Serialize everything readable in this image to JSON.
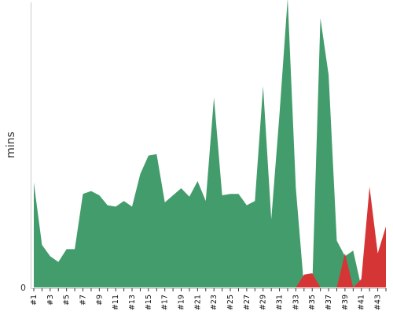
{
  "chart_data": {
    "type": "area",
    "ylabel": "mins",
    "y_tick_labels": [
      "0"
    ],
    "x_tick_labels": [
      "#1",
      "#3",
      "#5",
      "#7",
      "#9",
      "#11",
      "#13",
      "#15",
      "#17",
      "#19",
      "#21",
      "#23",
      "#25",
      "#27",
      "#29",
      "#31",
      "#33",
      "#35",
      "#37",
      "#39",
      "#41",
      "#43"
    ],
    "categories": [
      "#1",
      "#2",
      "#3",
      "#4",
      "#5",
      "#6",
      "#7",
      "#8",
      "#9",
      "#10",
      "#11",
      "#12",
      "#13",
      "#14",
      "#15",
      "#16",
      "#17",
      "#18",
      "#19",
      "#20",
      "#21",
      "#22",
      "#23",
      "#24",
      "#25",
      "#26",
      "#27",
      "#28",
      "#29",
      "#30",
      "#31",
      "#32",
      "#33",
      "#34",
      "#35",
      "#36",
      "#37",
      "#38",
      "#39",
      "#40",
      "#41",
      "#42",
      "#43",
      "#44"
    ],
    "ylim": [
      0,
      100
    ],
    "series": [
      {
        "color": "#439c6b",
        "values": [
          37,
          15,
          11,
          9,
          13.5,
          13.5,
          33,
          34,
          32.5,
          29,
          28.5,
          30.5,
          28.5,
          40,
          46.5,
          47,
          30,
          32.5,
          35,
          32,
          37.5,
          30.5,
          67,
          32.5,
          33,
          33,
          29,
          30.5,
          71,
          24,
          61,
          102,
          35,
          0,
          0,
          95,
          75,
          16.5,
          11,
          13,
          0,
          0,
          0,
          0
        ]
      },
      {
        "color": "#d63535",
        "values": [
          0,
          0,
          0,
          0,
          0,
          0,
          0,
          0,
          0,
          0,
          0,
          0,
          0,
          0,
          0,
          0,
          0,
          0,
          0,
          0,
          0,
          0,
          0,
          0,
          0,
          0,
          0,
          0,
          0,
          0,
          0,
          0,
          0,
          4.5,
          5,
          0,
          0,
          0,
          12,
          0,
          3,
          35.5,
          12,
          21.5
        ]
      }
    ],
    "grid": false,
    "legend": "none"
  }
}
